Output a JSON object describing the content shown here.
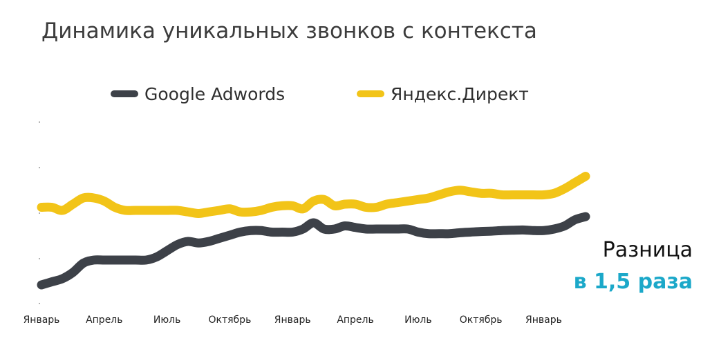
{
  "colors": {
    "google": "#3d4148",
    "yandex": "#f2c418",
    "note_highlight": "#1ba8c9",
    "title": "#3c3c3c",
    "axis": "#666666"
  },
  "annotation": {
    "line1": "Разница",
    "line2": "в 1,5 раза"
  },
  "chart_data": {
    "type": "line",
    "title": "Динамика уникальных звонков с контекста",
    "legend_position": "top-center",
    "grid": false,
    "y_axis_labels_visible": false,
    "x": [
      0,
      0.5,
      1,
      1.5,
      2,
      2.5,
      3,
      3.5,
      4,
      4.5,
      5,
      5.5,
      6,
      6.5,
      7,
      7.5,
      8,
      8.5,
      9,
      9.5,
      10,
      10.5,
      11,
      11.5,
      12,
      12.5,
      13,
      13.5,
      14,
      14.5,
      15,
      15.5,
      16,
      16.5,
      17,
      17.5,
      18,
      18.5,
      19,
      19.5,
      20,
      20.5,
      21,
      21.5,
      22,
      22.5,
      23,
      23.5,
      24,
      24.5,
      25,
      25.5,
      26
    ],
    "categories": [
      "Январь",
      "Апрель",
      "Июль",
      "Октябрь",
      "Январь",
      "Апрель",
      "Июль",
      "Октябрь",
      "Январь"
    ],
    "category_positions": [
      0,
      3,
      6,
      9,
      12,
      15,
      18,
      21,
      24
    ],
    "ylim": [
      0,
      60
    ],
    "series": [
      {
        "name": "Google Adwords",
        "color": "#3d4148",
        "values": [
          6,
          7,
          8,
          10,
          13,
          14,
          14,
          14,
          14,
          14,
          14,
          15,
          17,
          19,
          20,
          19.5,
          20,
          21,
          22,
          23,
          23.5,
          23.5,
          23,
          23,
          23,
          24,
          26,
          24,
          24,
          25,
          24.5,
          24,
          24,
          24,
          24,
          24,
          23,
          22.5,
          22.5,
          22.5,
          22.8,
          23,
          23.2,
          23.3,
          23.5,
          23.6,
          23.7,
          23.5,
          23.5,
          24,
          25,
          27,
          28
        ]
      },
      {
        "name": "Яндекс.Директ",
        "color": "#f2c418",
        "values": [
          31,
          31,
          30,
          32,
          34,
          34,
          33,
          31,
          30,
          30,
          30,
          30,
          30,
          30,
          29.5,
          29,
          29.5,
          30,
          30.5,
          29.5,
          29.5,
          30,
          31,
          31.5,
          31.5,
          30.5,
          33,
          33.5,
          31.5,
          32,
          32,
          31,
          31,
          32,
          32.5,
          33,
          33.5,
          34,
          35,
          36,
          36.5,
          36,
          35.5,
          35.5,
          35,
          35,
          35,
          35,
          35,
          35.5,
          37,
          39,
          41
        ]
      }
    ]
  }
}
